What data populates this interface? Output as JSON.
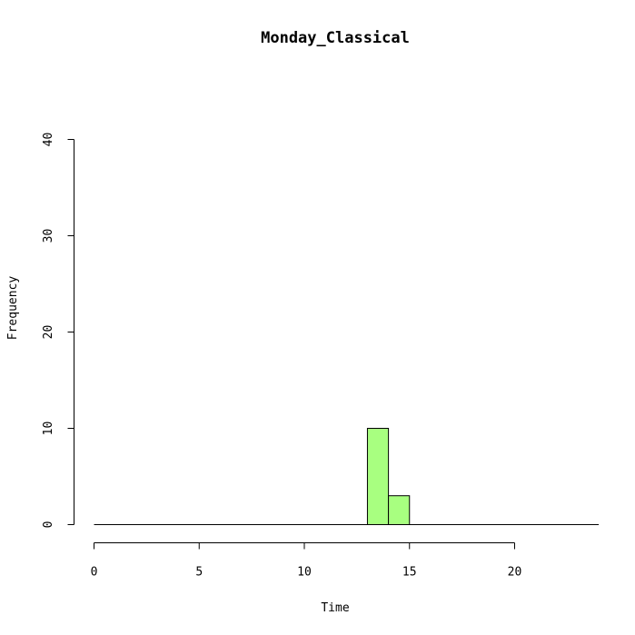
{
  "chart_data": {
    "type": "bar",
    "title": "Monday_Classical",
    "xlabel": "Time",
    "ylabel": "Frequency",
    "xlim": [
      0,
      24
    ],
    "ylim": [
      0,
      40
    ],
    "x_ticks": [
      0,
      5,
      10,
      15,
      20
    ],
    "y_ticks": [
      0,
      10,
      20,
      30,
      40
    ],
    "bin_width": 1,
    "bins": [
      {
        "start": 13,
        "end": 14,
        "value": 10
      },
      {
        "start": 14,
        "end": 15,
        "value": 3
      }
    ],
    "bar_color": "#a8ff80",
    "edge_color": "#000000",
    "grid": false,
    "legend": "none"
  }
}
